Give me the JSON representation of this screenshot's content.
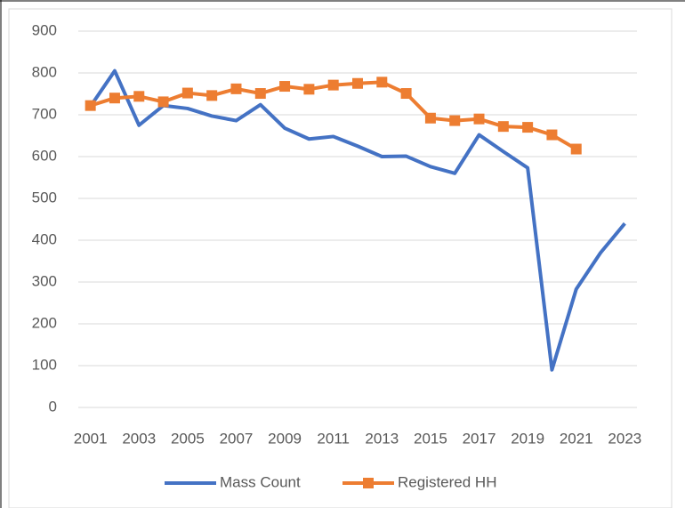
{
  "chart_data": {
    "type": "line",
    "x": [
      2001,
      2002,
      2003,
      2004,
      2005,
      2006,
      2007,
      2008,
      2009,
      2010,
      2011,
      2012,
      2013,
      2014,
      2015,
      2016,
      2017,
      2018,
      2019,
      2020,
      2021,
      2022,
      2023
    ],
    "series": [
      {
        "name": "Mass Count",
        "color": "#4472c4",
        "marker": "none",
        "values": [
          720,
          805,
          675,
          722,
          715,
          697,
          686,
          724,
          668,
          642,
          648,
          625,
          600,
          601,
          576,
          560,
          652,
          612,
          573,
          90,
          283,
          370,
          440
        ]
      },
      {
        "name": "Registered HH",
        "color": "#ed7d31",
        "marker": "square",
        "values": [
          722,
          740,
          744,
          731,
          752,
          746,
          762,
          751,
          768,
          761,
          771,
          775,
          778,
          751,
          692,
          686,
          690,
          672,
          670,
          652,
          618,
          null,
          null
        ]
      }
    ],
    "xlim": [
      2000.5,
      2023.5
    ],
    "xticks": [
      2001,
      2003,
      2005,
      2007,
      2009,
      2011,
      2013,
      2015,
      2017,
      2019,
      2021,
      2023
    ],
    "ylim": [
      0,
      900
    ],
    "yticks": [
      0,
      100,
      200,
      300,
      400,
      500,
      600,
      700,
      800,
      900
    ],
    "grid": true,
    "legend": "bottom"
  }
}
